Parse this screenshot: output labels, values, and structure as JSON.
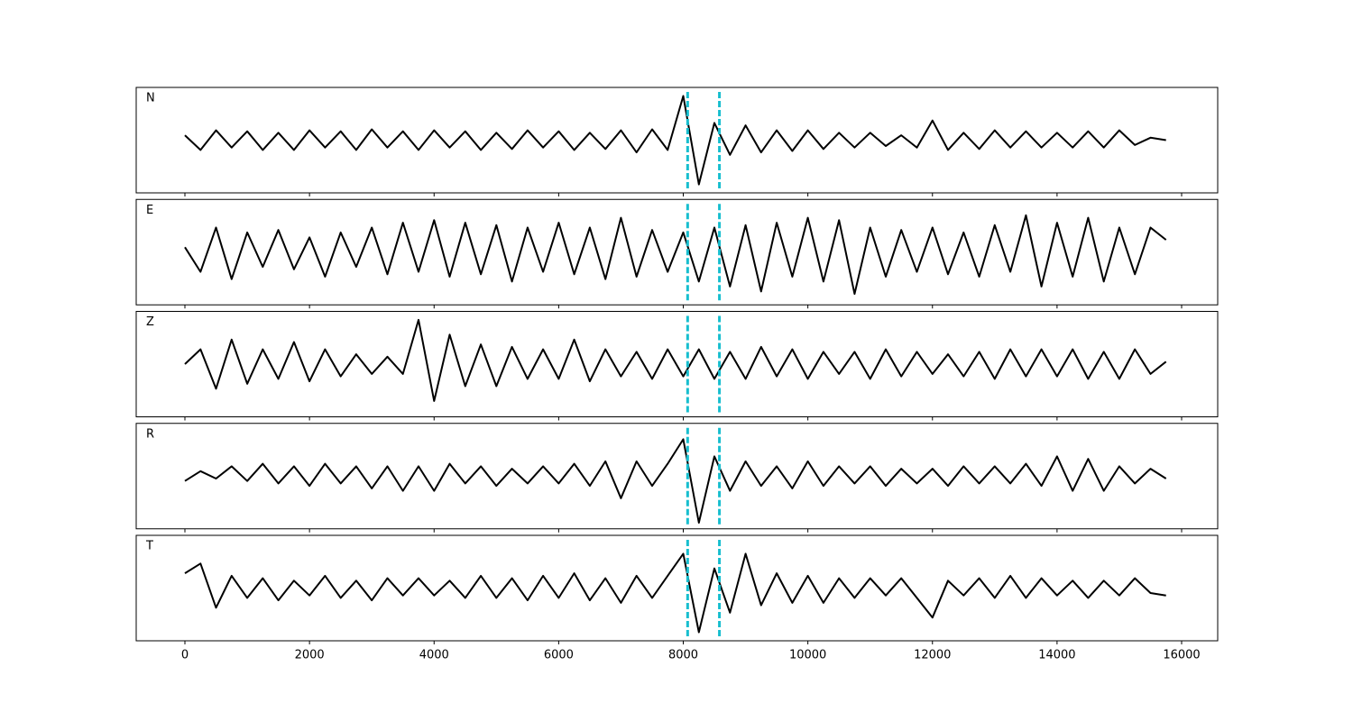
{
  "chart_data": {
    "type": "line",
    "layout": "stacked",
    "x": [
      0,
      250,
      500,
      750,
      1000,
      1250,
      1500,
      1750,
      2000,
      2250,
      2500,
      2750,
      3000,
      3250,
      3500,
      3750,
      4000,
      4250,
      4500,
      4750,
      5000,
      5250,
      5500,
      5750,
      6000,
      6250,
      6500,
      6750,
      7000,
      7250,
      7500,
      7750,
      8000,
      8250,
      8500,
      8750,
      9000,
      9250,
      9500,
      9750,
      10000,
      10250,
      10500,
      10750,
      11000,
      11250,
      11500,
      11750,
      12000,
      12250,
      12500,
      12750,
      13000,
      13250,
      13500,
      13750,
      14000,
      14250,
      14500,
      14750,
      15000,
      15250,
      15500,
      15750
    ],
    "xlim": [
      -782,
      16579
    ],
    "xticks": [
      0,
      2000,
      4000,
      6000,
      8000,
      10000,
      12000,
      14000,
      16000
    ],
    "ylim": [
      -1,
      1
    ],
    "vlines": [
      8070,
      8580
    ],
    "vline_color": "#17becf",
    "series": [
      {
        "name": "N",
        "color": "#000000",
        "values": [
          0.1,
          -0.2,
          0.2,
          -0.15,
          0.18,
          -0.2,
          0.15,
          -0.2,
          0.2,
          -0.15,
          0.18,
          -0.2,
          0.22,
          -0.15,
          0.18,
          -0.2,
          0.2,
          -0.15,
          0.18,
          -0.2,
          0.15,
          -0.18,
          0.2,
          -0.15,
          0.18,
          -0.2,
          0.15,
          -0.18,
          0.2,
          -0.25,
          0.22,
          -0.2,
          0.9,
          -0.9,
          0.35,
          -0.3,
          0.3,
          -0.25,
          0.2,
          -0.22,
          0.2,
          -0.18,
          0.15,
          -0.15,
          0.15,
          -0.12,
          0.1,
          -0.15,
          0.4,
          -0.2,
          0.15,
          -0.18,
          0.2,
          -0.15,
          0.18,
          -0.15,
          0.15,
          -0.15,
          0.18,
          -0.15,
          0.2,
          -0.1,
          0.05,
          0.0
        ]
      },
      {
        "name": "E",
        "color": "#000000",
        "values": [
          0.1,
          -0.4,
          0.5,
          -0.55,
          0.4,
          -0.3,
          0.45,
          -0.35,
          0.3,
          -0.5,
          0.4,
          -0.3,
          0.5,
          -0.45,
          0.6,
          -0.4,
          0.65,
          -0.5,
          0.6,
          -0.45,
          0.55,
          -0.6,
          0.5,
          -0.4,
          0.6,
          -0.45,
          0.5,
          -0.55,
          0.7,
          -0.5,
          0.45,
          -0.4,
          0.4,
          -0.6,
          0.5,
          -0.7,
          0.55,
          -0.8,
          0.6,
          -0.5,
          0.7,
          -0.6,
          0.65,
          -0.85,
          0.5,
          -0.5,
          0.45,
          -0.4,
          0.5,
          -0.45,
          0.4,
          -0.5,
          0.55,
          -0.4,
          0.75,
          -0.7,
          0.6,
          -0.5,
          0.7,
          -0.6,
          0.5,
          -0.45,
          0.5,
          0.25
        ]
      },
      {
        "name": "Z",
        "color": "#000000",
        "values": [
          0.0,
          0.3,
          -0.5,
          0.5,
          -0.4,
          0.3,
          -0.3,
          0.45,
          -0.35,
          0.3,
          -0.25,
          0.2,
          -0.2,
          0.15,
          -0.2,
          0.9,
          -0.75,
          0.6,
          -0.45,
          0.4,
          -0.45,
          0.35,
          -0.3,
          0.3,
          -0.3,
          0.5,
          -0.35,
          0.3,
          -0.25,
          0.25,
          -0.3,
          0.3,
          -0.25,
          0.3,
          -0.3,
          0.25,
          -0.3,
          0.35,
          -0.25,
          0.3,
          -0.3,
          0.25,
          -0.2,
          0.25,
          -0.3,
          0.3,
          -0.25,
          0.25,
          -0.2,
          0.2,
          -0.25,
          0.25,
          -0.3,
          0.3,
          -0.25,
          0.3,
          -0.25,
          0.3,
          -0.3,
          0.25,
          -0.3,
          0.3,
          -0.2,
          0.05
        ]
      },
      {
        "name": "R",
        "color": "#000000",
        "values": [
          -0.1,
          0.1,
          -0.05,
          0.2,
          -0.1,
          0.25,
          -0.15,
          0.2,
          -0.2,
          0.25,
          -0.15,
          0.2,
          -0.25,
          0.2,
          -0.3,
          0.2,
          -0.3,
          0.25,
          -0.15,
          0.2,
          -0.2,
          0.15,
          -0.15,
          0.2,
          -0.15,
          0.25,
          -0.2,
          0.3,
          -0.45,
          0.3,
          -0.2,
          0.25,
          0.75,
          -0.95,
          0.4,
          -0.3,
          0.3,
          -0.2,
          0.2,
          -0.25,
          0.3,
          -0.2,
          0.2,
          -0.15,
          0.2,
          -0.2,
          0.15,
          -0.15,
          0.15,
          -0.2,
          0.2,
          -0.15,
          0.2,
          -0.15,
          0.25,
          -0.2,
          0.4,
          -0.3,
          0.35,
          -0.3,
          0.2,
          -0.15,
          0.15,
          -0.05
        ]
      },
      {
        "name": "T",
        "color": "#000000",
        "values": [
          0.3,
          0.5,
          -0.4,
          0.25,
          -0.2,
          0.2,
          -0.25,
          0.15,
          -0.15,
          0.25,
          -0.2,
          0.15,
          -0.25,
          0.2,
          -0.15,
          0.2,
          -0.15,
          0.15,
          -0.2,
          0.25,
          -0.2,
          0.2,
          -0.25,
          0.25,
          -0.2,
          0.3,
          -0.25,
          0.2,
          -0.3,
          0.25,
          -0.2,
          0.25,
          0.7,
          -0.9,
          0.4,
          -0.5,
          0.7,
          -0.35,
          0.3,
          -0.3,
          0.25,
          -0.3,
          0.2,
          -0.2,
          0.2,
          -0.15,
          0.2,
          -0.2,
          -0.6,
          0.15,
          -0.15,
          0.2,
          -0.2,
          0.25,
          -0.2,
          0.2,
          -0.15,
          0.15,
          -0.2,
          0.15,
          -0.15,
          0.2,
          -0.1,
          -0.15
        ]
      }
    ]
  }
}
